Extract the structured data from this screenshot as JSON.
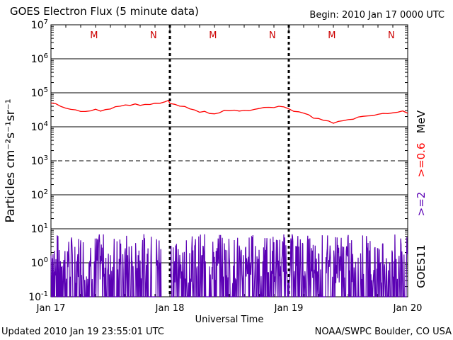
{
  "header": {
    "title": "GOES Electron Flux (5 minute data)",
    "begin": "Begin: 2010 Jan 17 0000 UTC"
  },
  "footer": {
    "updated": "Updated 2010 Jan 19 23:55:01 UTC",
    "credit": "NOAA/SWPC Boulder, CO USA"
  },
  "right_labels": {
    "unit": "MeV",
    "ge06": ">=0.6",
    "ge2": ">=2",
    "satellite": "GOES11"
  },
  "colors": {
    "ge06": "#ff0000",
    "ge2": "#5a00b4",
    "marker": "#cc0000"
  },
  "chart_data": {
    "type": "line",
    "title": "GOES Electron Flux (5 minute data)",
    "xlabel": "Universal Time",
    "ylabel": "Particles cm⁻²s⁻¹sr⁻¹",
    "yscale": "log",
    "ylim": [
      0.1,
      10000000
    ],
    "xlim": [
      0,
      72
    ],
    "x_unit": "hours since 2010 Jan 17 0000 UTC",
    "x_ticks": [
      {
        "x": 0,
        "label": "Jan 17"
      },
      {
        "x": 24,
        "label": "Jan 18"
      },
      {
        "x": 48,
        "label": "Jan 19"
      },
      {
        "x": 72,
        "label": "Jan 20"
      }
    ],
    "y_ticks": [
      {
        "v": 0.1,
        "base": "10",
        "exp": "-1"
      },
      {
        "v": 1,
        "base": "10",
        "exp": "0"
      },
      {
        "v": 10,
        "base": "10",
        "exp": "1"
      },
      {
        "v": 100,
        "base": "10",
        "exp": "2"
      },
      {
        "v": 1000,
        "base": "10",
        "exp": "3"
      },
      {
        "v": 10000,
        "base": "10",
        "exp": "4"
      },
      {
        "v": 100000,
        "base": "10",
        "exp": "5"
      },
      {
        "v": 1000000,
        "base": "10",
        "exp": "6"
      },
      {
        "v": 10000000,
        "base": "10",
        "exp": "7"
      }
    ],
    "dashed_levels": [
      1000
    ],
    "day_markers": [
      {
        "label": "M",
        "x": 8.7
      },
      {
        "label": "N",
        "x": 20.7
      },
      {
        "label": "M",
        "x": 32.7
      },
      {
        "label": "N",
        "x": 44.7
      },
      {
        "label": "M",
        "x": 56.7
      },
      {
        "label": "N",
        "x": 68.7
      }
    ],
    "series": [
      {
        "name": ">=0.6 MeV",
        "points": [
          [
            0,
            50000
          ],
          [
            1,
            46000
          ],
          [
            2,
            40000
          ],
          [
            3,
            36000
          ],
          [
            4,
            33000
          ],
          [
            5,
            30000
          ],
          [
            6,
            29000
          ],
          [
            7,
            28500
          ],
          [
            8,
            30000
          ],
          [
            9,
            31000
          ],
          [
            10,
            30000
          ],
          [
            11,
            32000
          ],
          [
            12,
            34000
          ],
          [
            13,
            37000
          ],
          [
            14,
            42000
          ],
          [
            15,
            44000
          ],
          [
            16,
            43000
          ],
          [
            17,
            45000
          ],
          [
            18,
            44000
          ],
          [
            19,
            46000
          ],
          [
            20,
            45000
          ],
          [
            21,
            48000
          ],
          [
            22,
            50000
          ],
          [
            23,
            56000
          ],
          [
            23.7,
            58000
          ],
          [
            24,
            48000
          ],
          [
            25,
            46000
          ],
          [
            26,
            42000
          ],
          [
            27,
            38000
          ],
          [
            28,
            34000
          ],
          [
            29,
            31000
          ],
          [
            30,
            28000
          ],
          [
            31,
            27000
          ],
          [
            32,
            25000
          ],
          [
            33,
            24000
          ],
          [
            34,
            27000
          ],
          [
            35,
            29000
          ],
          [
            36,
            30000
          ],
          [
            37,
            31000
          ],
          [
            38,
            30000
          ],
          [
            39,
            29000
          ],
          [
            40,
            30000
          ],
          [
            41,
            33000
          ],
          [
            42,
            35000
          ],
          [
            43,
            36000
          ],
          [
            44,
            37000
          ],
          [
            45,
            38000
          ],
          [
            46,
            40000
          ],
          [
            47,
            38000
          ],
          [
            48,
            33000
          ],
          [
            49,
            30000
          ],
          [
            50,
            27000
          ],
          [
            51,
            25000
          ],
          [
            52,
            22000
          ],
          [
            53,
            19000
          ],
          [
            54,
            17000
          ],
          [
            55,
            15500
          ],
          [
            56,
            14500
          ],
          [
            57,
            13500
          ],
          [
            58,
            14000
          ],
          [
            59,
            15000
          ],
          [
            60,
            16000
          ],
          [
            61,
            17500
          ],
          [
            62,
            19000
          ],
          [
            63,
            20000
          ],
          [
            64,
            21000
          ],
          [
            65,
            22000
          ],
          [
            66,
            23000
          ],
          [
            67,
            24000
          ],
          [
            68,
            25000
          ],
          [
            69,
            26000
          ],
          [
            70,
            27000
          ],
          [
            71,
            28000
          ],
          [
            72,
            26000
          ]
        ]
      },
      {
        "name": ">=2 MeV",
        "min": 0.1,
        "max": 10,
        "gap": [
          22.3,
          24.1
        ],
        "peak": [
          23.3,
          14
        ]
      }
    ]
  }
}
